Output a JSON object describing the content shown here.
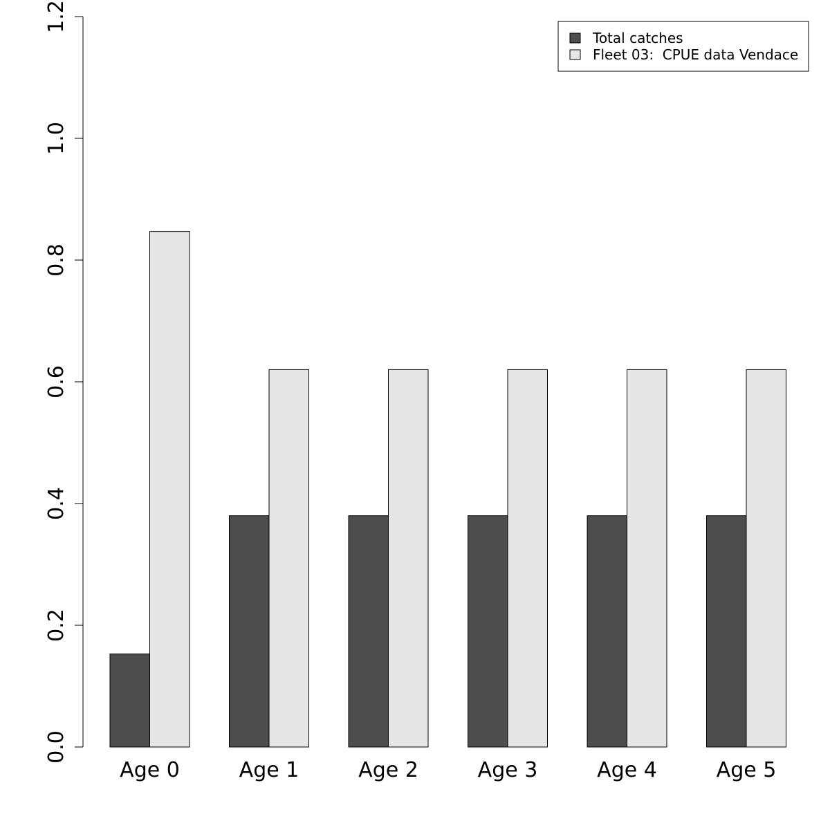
{
  "chart_data": {
    "type": "bar",
    "categories": [
      "Age 0",
      "Age 1",
      "Age 2",
      "Age 3",
      "Age 4",
      "Age 5"
    ],
    "series": [
      {
        "name": "Total catches",
        "values": [
          0.153,
          0.38,
          0.38,
          0.38,
          0.38,
          0.38
        ],
        "color": "#4d4d4d"
      },
      {
        "name": "Fleet 03:  CPUE data Vendace",
        "values": [
          0.847,
          0.62,
          0.62,
          0.62,
          0.62,
          0.62
        ],
        "color": "#e6e6e6"
      }
    ],
    "ylim": [
      0,
      1.2
    ],
    "yticks": [
      "0.0",
      "0.2",
      "0.4",
      "0.6",
      "0.8",
      "1.0",
      "1.2"
    ],
    "legend_position": "top-right",
    "grid": false,
    "title": "",
    "xlabel": "",
    "ylabel": ""
  }
}
